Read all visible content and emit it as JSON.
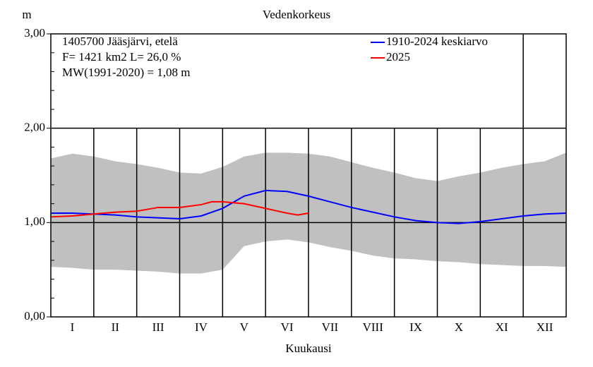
{
  "chart_data": {
    "type": "line",
    "title": "Vedenkorkeus",
    "y_label": "m",
    "x_label": "Kuukausi",
    "info": [
      "1405700 Jääsjärvi, etelä",
      "F=   1421 km2 L=  26,0 %",
      "MW(1991-2020) = 1,08 m"
    ],
    "categories": [
      "I",
      "II",
      "III",
      "IV",
      "V",
      "VI",
      "VII",
      "VIII",
      "IX",
      "X",
      "XI",
      "XII"
    ],
    "xlim": [
      0,
      12
    ],
    "ylim": [
      0,
      3
    ],
    "yticks": [
      {
        "value": 0,
        "label": "0,00"
      },
      {
        "value": 1,
        "label": "1,00"
      },
      {
        "value": 2,
        "label": "2,00"
      },
      {
        "value": 3,
        "label": "3,00"
      }
    ],
    "yminorticks": [
      0.2,
      0.4,
      0.6,
      0.8,
      1.2,
      1.4,
      1.6,
      1.8,
      2.2,
      2.4,
      2.6,
      2.8
    ],
    "grid": true,
    "legend": "top-right",
    "band": {
      "color": "#c0c0c0",
      "x": [
        0,
        0.5,
        1,
        1.5,
        2,
        2.5,
        3,
        3.5,
        4,
        4.5,
        5,
        5.5,
        6,
        6.5,
        7,
        7.5,
        8,
        8.5,
        9,
        9.5,
        10,
        10.5,
        11,
        11.5,
        12
      ],
      "upper": [
        1.68,
        1.73,
        1.7,
        1.65,
        1.62,
        1.58,
        1.53,
        1.52,
        1.59,
        1.7,
        1.74,
        1.74,
        1.73,
        1.7,
        1.64,
        1.58,
        1.53,
        1.47,
        1.44,
        1.49,
        1.53,
        1.58,
        1.62,
        1.65,
        1.74
      ],
      "lower": [
        0.53,
        0.52,
        0.5,
        0.5,
        0.49,
        0.48,
        0.46,
        0.46,
        0.5,
        0.75,
        0.8,
        0.82,
        0.79,
        0.74,
        0.7,
        0.65,
        0.62,
        0.61,
        0.59,
        0.58,
        0.56,
        0.55,
        0.54,
        0.54,
        0.53
      ]
    },
    "series": [
      {
        "name": "1910-2024 keskiarvo",
        "color": "#0000ff",
        "x": [
          0,
          0.5,
          1,
          1.5,
          2,
          2.5,
          3,
          3.5,
          4,
          4.5,
          5,
          5.5,
          6,
          6.5,
          7,
          7.5,
          8,
          8.5,
          9,
          9.5,
          10,
          10.5,
          11,
          11.5,
          12
        ],
        "values": [
          1.1,
          1.1,
          1.09,
          1.08,
          1.06,
          1.05,
          1.04,
          1.07,
          1.15,
          1.28,
          1.34,
          1.33,
          1.28,
          1.22,
          1.16,
          1.11,
          1.06,
          1.02,
          1.0,
          0.99,
          1.01,
          1.04,
          1.07,
          1.09,
          1.1
        ]
      },
      {
        "name": "2025",
        "color": "#ff0000",
        "x": [
          0,
          0.5,
          1,
          1.5,
          2,
          2.5,
          3,
          3.5,
          3.75,
          4,
          4.25,
          4.5,
          5,
          5.5,
          5.75,
          6
        ],
        "values": [
          1.06,
          1.07,
          1.09,
          1.11,
          1.12,
          1.16,
          1.16,
          1.19,
          1.22,
          1.22,
          1.21,
          1.2,
          1.15,
          1.1,
          1.08,
          1.1
        ]
      }
    ]
  }
}
